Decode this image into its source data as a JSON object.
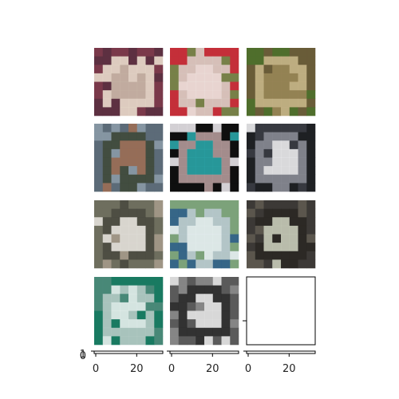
{
  "figure": {
    "rows": 4,
    "cols": 3,
    "panels": [
      {
        "id": "p1",
        "subject": "cat lying on red blanket",
        "palette": [
          "#7a3a4a",
          "#c9b8a8",
          "#5a3040",
          "#e8dccc"
        ]
      },
      {
        "id": "p2",
        "subject": "white fluffy dog",
        "palette": [
          "#c4303a",
          "#ece7e1",
          "#6f8a4a",
          "#d8cfc6"
        ]
      },
      {
        "id": "p3",
        "subject": "toad on grass",
        "palette": [
          "#4f6e2c",
          "#9a8458",
          "#6c5a3a",
          "#c9b48a"
        ]
      },
      {
        "id": "p4",
        "subject": "deer in forest",
        "palette": [
          "#5c6b78",
          "#9b6e54",
          "#8a9aa6",
          "#3f4a3a"
        ]
      },
      {
        "id": "p5",
        "subject": "white puppy on teal circle",
        "palette": [
          "#0f0f10",
          "#2aa6a8",
          "#e9e6ea",
          "#b49a9a"
        ]
      },
      {
        "id": "p6",
        "subject": "black and white dog",
        "palette": [
          "#1e2024",
          "#ededf0",
          "#3a3c44",
          "#8a8c96"
        ]
      },
      {
        "id": "p7",
        "subject": "white horse",
        "palette": [
          "#6e6e5e",
          "#e3e0da",
          "#a4998a",
          "#4a4a40"
        ]
      },
      {
        "id": "p8",
        "subject": "boat on water",
        "palette": [
          "#7ca27a",
          "#e7eef2",
          "#2f5f88",
          "#b9c9cf"
        ]
      },
      {
        "id": "p9",
        "subject": "grey cat in dark",
        "palette": [
          "#3c3a36",
          "#c6cbb8",
          "#5e5a50",
          "#2a2824"
        ]
      },
      {
        "id": "p10",
        "subject": "white boat on green sea",
        "palette": [
          "#1a7a62",
          "#e9f0ee",
          "#4e8a7a",
          "#b8cbc6"
        ]
      },
      {
        "id": "p11",
        "subject": "sailboat grayscale",
        "palette": [
          "#5a5a5a",
          "#e6e6e6",
          "#8a8a8a",
          "#2e2e2e"
        ]
      }
    ]
  },
  "chart_data": {
    "type": "image-grid",
    "rows": 4,
    "cols": 3,
    "image_panels": 11,
    "empty_panels": 1,
    "x_ticks": [
      {
        "value": 0,
        "label": "0"
      },
      {
        "value": 20,
        "label": "20"
      }
    ],
    "x_range": [
      0,
      32
    ],
    "overlapping_y_labels": [
      "1",
      "0"
    ]
  }
}
